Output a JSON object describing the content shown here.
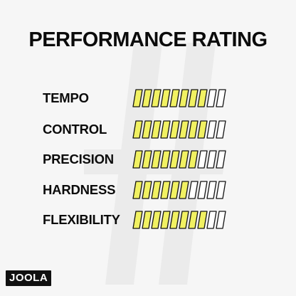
{
  "title": "PERFORMANCE RATING",
  "logo": "JOOLA",
  "segments_total": 10,
  "colors": {
    "fill": "#f1f162",
    "stroke": "#141414",
    "empty": "#ffffff",
    "watermark": "#ebebeb"
  },
  "ratings": [
    {
      "label": "TEMPO",
      "value": 8
    },
    {
      "label": "CONTROL",
      "value": 8
    },
    {
      "label": "PRECISION",
      "value": 7
    },
    {
      "label": "HARDNESS",
      "value": 6
    },
    {
      "label": "FLEXIBILITY",
      "value": 8
    }
  ]
}
